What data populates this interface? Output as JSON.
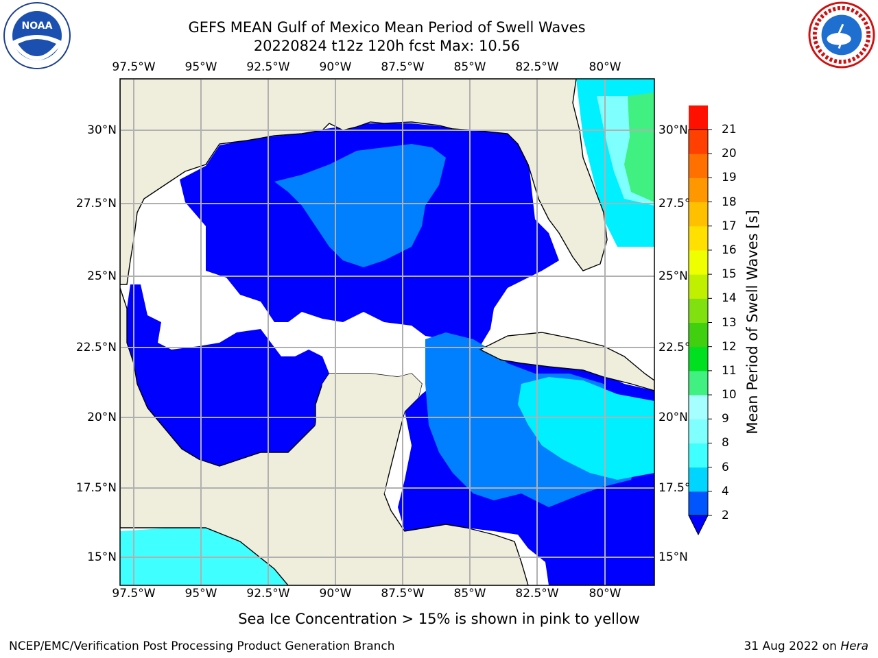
{
  "title": {
    "line1": "GEFS MEAN Gulf of Mexico Mean Period of Swell Waves",
    "line2": "20220824 t12z 120h fcst   Max: 10.56"
  },
  "map": {
    "region": "Gulf of Mexico",
    "lon_labels": [
      "97.5°W",
      "95°W",
      "92.5°W",
      "90°W",
      "87.5°W",
      "85°W",
      "82.5°W",
      "80°W"
    ],
    "lat_labels": [
      "30°N",
      "27.5°N",
      "25°N",
      "22.5°N",
      "20°N",
      "17.5°N",
      "15°N"
    ],
    "land_color": "#efeddc",
    "gridline_color": "#b0b0b0"
  },
  "colorbar": {
    "label": "Mean Period of Swell Waves [s]",
    "ticks": [
      "2",
      "4",
      "6",
      "8",
      "9",
      "10",
      "11",
      "12",
      "13",
      "14",
      "15",
      "16",
      "17",
      "18",
      "19",
      "20",
      "21"
    ],
    "colors": [
      "#0055ff",
      "#00d5ff",
      "#40ffff",
      "#80ffff",
      "#a6ffff",
      "#40f080",
      "#00e020",
      "#40d010",
      "#80e010",
      "#c0f000",
      "#f0ff00",
      "#ffe000",
      "#ffc000",
      "#ff9800",
      "#ff7000",
      "#ff4000",
      "#ff1000"
    ],
    "underflow_color": "#0000ff"
  },
  "footnote": "Sea Ice Concentration > 15% is shown in pink to yellow",
  "credits": {
    "left": "NCEP/EMC/Verification Post Processing Product Generation Branch",
    "right_date": "31 Aug 2022 on ",
    "right_host": "Hera"
  },
  "logos": {
    "left": "noaa-logo",
    "right": "nws-logo"
  }
}
